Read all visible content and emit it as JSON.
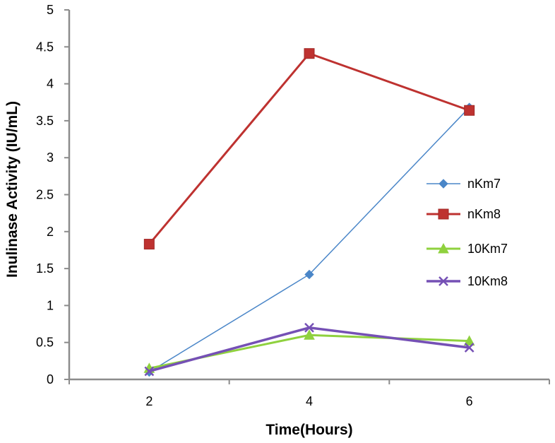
{
  "chart_data": {
    "type": "line",
    "title": "",
    "xlabel": "Time(Hours)",
    "ylabel": "Inulinase Activity (IU/mL)",
    "x": [
      2,
      4,
      6
    ],
    "x_tick_labels": [
      "2",
      "4",
      "6"
    ],
    "ylim": [
      0,
      5
    ],
    "y_tick_labels": [
      "0",
      "0.5",
      "1",
      "1.5",
      "2",
      "2.5",
      "3",
      "3.5",
      "4",
      "4.5",
      "5"
    ],
    "grid": false,
    "legend_position": "right",
    "series": [
      {
        "name": "nKm7",
        "values": [
          0.1,
          1.42,
          3.68
        ],
        "color": "#4a86c8",
        "marker": "diamond"
      },
      {
        "name": "nKm8",
        "values": [
          1.83,
          4.41,
          3.64
        ],
        "color": "#be3230",
        "marker": "square"
      },
      {
        "name": "10Km7",
        "values": [
          0.15,
          0.6,
          0.52
        ],
        "color": "#8fd13e",
        "marker": "triangle"
      },
      {
        "name": "10Km8",
        "values": [
          0.11,
          0.7,
          0.43
        ],
        "color": "#7550b5",
        "marker": "x"
      }
    ]
  }
}
